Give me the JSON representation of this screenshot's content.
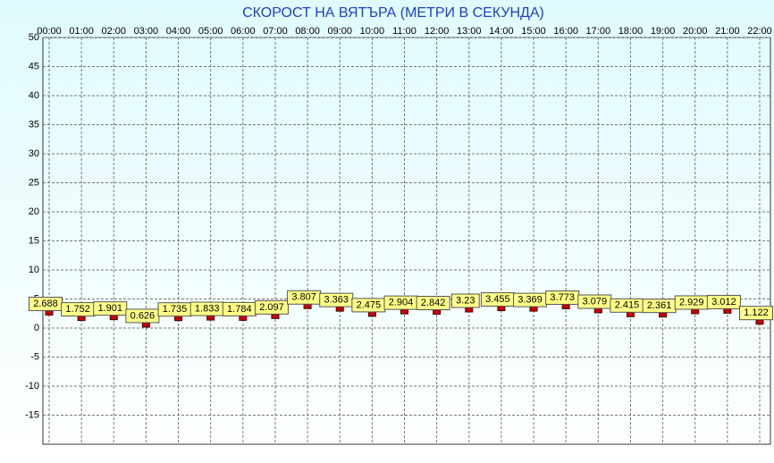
{
  "chart_data": {
    "type": "line",
    "title": "СКОРОСТ НА ВЯТЪРА (МЕТРИ В СЕКУНДА)",
    "categories": [
      "00:00",
      "01:00",
      "02:00",
      "03:00",
      "04:00",
      "05:00",
      "06:00",
      "07:00",
      "08:00",
      "09:00",
      "10:00",
      "11:00",
      "12:00",
      "13:00",
      "14:00",
      "15:00",
      "16:00",
      "17:00",
      "18:00",
      "19:00",
      "20:00",
      "21:00",
      "22:00"
    ],
    "values": [
      2.688,
      1.752,
      1.901,
      0.626,
      1.735,
      1.833,
      1.784,
      2.097,
      3.807,
      3.363,
      2.475,
      2.904,
      2.842,
      3.23,
      3.455,
      3.369,
      3.773,
      3.079,
      2.415,
      2.361,
      2.929,
      3.012,
      1.122
    ],
    "color": "#cc0000",
    "ylim": [
      -20,
      50
    ],
    "yticks": [
      -15,
      -10,
      -5,
      0,
      5,
      10,
      15,
      20,
      25,
      30,
      35,
      40,
      45,
      50
    ],
    "grid": true
  }
}
